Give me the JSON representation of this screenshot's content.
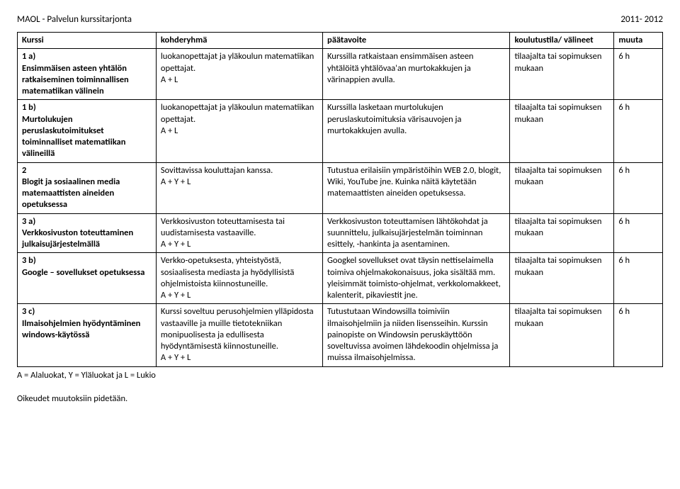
{
  "header": {
    "title": "MAOL - Palvelun kurssitarjonta",
    "year": "2011- 2012"
  },
  "columns": {
    "c1": "Kurssi",
    "c2": "kohderyhmä",
    "c3": "päätavoite",
    "c4": "koulutustila/ välineet",
    "c5": "muuta"
  },
  "rows": [
    {
      "id": "1 a)",
      "title": "Ensimmäisen asteen yhtälön ratkaiseminen toiminnallisen matematiikan välinein",
      "kohde": "luokanopettajat ja yläkoulun matematiikan opettajat.\nA + L",
      "tavoite": "Kurssilla ratkaistaan ensimmäisen asteen yhtälöitä yhtälövaa'an murtokakkujen ja värinappien avulla.",
      "tila": "tilaajalta tai sopimuksen mukaan",
      "muuta": "6 h"
    },
    {
      "id": "1 b)",
      "title": "Murtolukujen peruslaskutoimitukset toiminnalliset matematiikan välineillä",
      "kohde": "luokanopettajat ja yläkoulun matematiikan opettajat.\nA + L",
      "tavoite": "Kurssilla lasketaan murtolukujen peruslaskutoimituksia värisauvojen ja murtokakkujen avulla.",
      "tila": "tilaajalta tai sopimuksen mukaan",
      "muuta": "6 h"
    },
    {
      "id": "2",
      "title": "Blogit ja sosiaalinen media matemaattisten aineiden opetuksessa",
      "kohde": "Sovittavissa kouluttajan kanssa.\nA + Y + L",
      "tavoite": "Tutustua erilaisiin ympäristöihin WEB 2.0, blogit, Wiki, YouTube jne. Kuinka näitä käytetään matemaattisten aineiden opetuksessa.",
      "tila": "tilaajalta tai sopimuksen mukaan",
      "muuta": "6 h"
    },
    {
      "id": "3 a)",
      "title": "Verkkosivuston toteuttaminen julkaisujärjestelmällä",
      "kohde": "Verkkosivuston toteuttamisesta tai uudistamisesta vastaaville.\nA + Y + L",
      "tavoite": "Verkkosivuston toteuttamisen lähtökohdat ja suunnittelu, julkaisujärjestelmän toiminnan esittely, -hankinta ja asentaminen.",
      "tila": "tilaajalta tai sopimuksen mukaan",
      "muuta": "6 h"
    },
    {
      "id": "3 b)",
      "title": "Google – sovellukset opetuksessa",
      "kohde": "Verkko-opetuksesta, yhteistyöstä, sosiaalisesta mediasta ja hyödyllisistä ohjelmistoista kiinnostuneille.\nA + Y + L",
      "tavoite": "Googkel sovellukset ovat täysin nettiselaimella toimiva ohjelmakokonaisuus, joka sisältää mm. yleisimmät toimisto-ohjelmat, verkkolomakkeet, kalenterit, pikaviestit jne.",
      "tila": "tilaajalta tai sopimuksen mukaan",
      "muuta": "6 h"
    },
    {
      "id": "3 c)",
      "title": "Ilmaisohjelmien hyödyntäminen windows-käytössä",
      "kohde": "Kurssi soveltuu perusohjelmien ylläpidosta vastaaville ja muille tietotekniikan monipuolisesta ja edullisesta hyödyntämisestä kiinnostuneille.\nA + Y + L",
      "tavoite": "Tutustutaan Windowsilla toimiviin ilmaisohjelmiin ja niiden lisensseihin. Kurssin painopiste on Windowsin peruskäyttöön soveltuvissa avoimen lähdekoodin ohjelmissa ja muissa ilmaisohjelmissa.",
      "tila": "tilaajalta tai sopimuksen mukaan",
      "muuta": "6 h"
    }
  ],
  "legend": "A = Alaluokat, Y = Yläluokat ja L = Lukio",
  "rights": "Oikeudet muutoksiin pidetään."
}
